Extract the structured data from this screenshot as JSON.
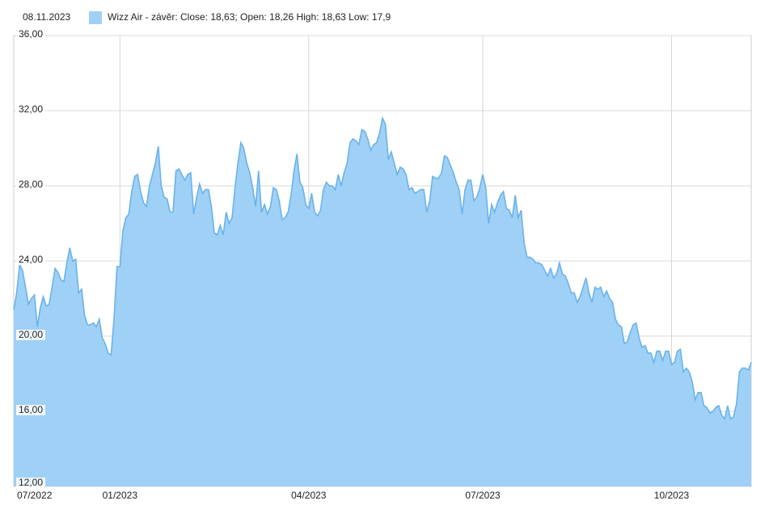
{
  "chart_data": {
    "type": "area",
    "date": "08.11.2023",
    "series": [
      {
        "name": "Wizz Air - závěr:",
        "tooltip": "Close: 18,63; Open: 18,26 High: 18,63 Low: 17,9",
        "color": "#9fd0f6",
        "line_color": "#6ab3ea",
        "values": [
          21.4,
          22.3,
          23.8,
          23.5,
          22.6,
          21.7,
          22.0,
          22.2,
          20.5,
          21.5,
          22.1,
          21.6,
          21.7,
          22.6,
          23.6,
          23.4,
          23.0,
          22.9,
          23.9,
          24.7,
          24.0,
          24.1,
          22.3,
          22.5,
          21.1,
          20.6,
          20.6,
          20.7,
          20.5,
          20.9,
          19.9,
          19.6,
          19.1,
          19.0,
          20.9,
          23.7,
          23.7,
          25.6,
          26.3,
          26.5,
          27.7,
          28.5,
          28.6,
          27.7,
          27.1,
          26.9,
          28.0,
          28.6,
          29.2,
          30.1,
          28.0,
          27.4,
          27.3,
          26.6,
          26.6,
          28.8,
          28.9,
          28.6,
          28.3,
          28.6,
          28.7,
          26.5,
          27.4,
          28.1,
          27.6,
          27.8,
          27.8,
          26.9,
          25.5,
          25.4,
          25.9,
          25.4,
          26.6,
          26.0,
          26.3,
          27.9,
          29.2,
          30.3,
          30.0,
          29.2,
          28.7,
          27.9,
          26.9,
          28.8,
          26.6,
          27.0,
          26.5,
          26.9,
          27.9,
          27.8,
          27.2,
          26.2,
          26.3,
          26.6,
          27.5,
          28.8,
          29.7,
          28.2,
          27.9,
          27.0,
          26.8,
          27.6,
          26.6,
          26.4,
          26.7,
          27.8,
          28.2,
          28.0,
          28.0,
          27.8,
          28.6,
          28.0,
          28.7,
          29.2,
          30.3,
          30.5,
          30.4,
          30.2,
          31.0,
          30.9,
          30.5,
          29.9,
          30.2,
          30.3,
          30.8,
          31.6,
          31.3,
          29.4,
          29.8,
          29.2,
          28.6,
          29.0,
          28.9,
          28.6,
          27.8,
          27.9,
          27.6,
          27.7,
          27.8,
          27.8,
          26.6,
          27.2,
          28.5,
          28.4,
          28.4,
          28.7,
          29.6,
          29.5,
          29.1,
          28.7,
          28.2,
          27.8,
          26.5,
          27.8,
          28.3,
          28.3,
          27.2,
          27.4,
          27.9,
          28.6,
          27.9,
          26.0,
          27.0,
          26.6,
          27.1,
          27.5,
          27.7,
          26.8,
          26.7,
          26.3,
          27.5,
          26.3,
          26.7,
          25.0,
          24.2,
          24.2,
          24.1,
          23.9,
          23.9,
          23.8,
          23.5,
          23.2,
          23.6,
          23.1,
          23.3,
          23.9,
          23.3,
          23.2,
          22.8,
          22.3,
          22.3,
          21.8,
          22.1,
          22.6,
          23.1,
          22.3,
          21.8,
          22.6,
          22.5,
          22.6,
          22.1,
          22.4,
          22.0,
          21.8,
          20.9,
          20.6,
          20.5,
          19.6,
          19.7,
          20.2,
          20.6,
          20.7,
          19.9,
          19.4,
          19.5,
          19.1,
          19.1,
          18.6,
          19.2,
          19.2,
          18.7,
          19.2,
          19.2,
          18.5,
          18.6,
          19.2,
          19.3,
          18.1,
          18.3,
          18.1,
          17.6,
          16.6,
          17.0,
          17.0,
          16.3,
          16.2,
          15.9,
          16.0,
          16.2,
          16.3,
          15.8,
          15.6,
          16.3,
          15.6,
          15.7,
          16.4,
          18.1,
          18.3,
          18.3,
          18.2,
          18.6
        ]
      }
    ],
    "xlim": [
      0,
      250
    ],
    "xticks": [
      {
        "value": 0,
        "label": "07/2022"
      },
      {
        "value": 36,
        "label": "01/2023"
      },
      {
        "value": 100,
        "label": "04/2023"
      },
      {
        "value": 159,
        "label": "07/2023"
      },
      {
        "value": 223,
        "label": "10/2023"
      }
    ],
    "ylim": [
      12,
      36
    ],
    "yticks": [
      {
        "value": 12,
        "label": "12,00"
      },
      {
        "value": 16,
        "label": "16,00"
      },
      {
        "value": 20,
        "label": "20,00"
      },
      {
        "value": 24,
        "label": "24,00"
      },
      {
        "value": 28,
        "label": "28,00"
      },
      {
        "value": 32,
        "label": "32,00"
      },
      {
        "value": 36,
        "label": "36,00"
      }
    ],
    "grid": true
  }
}
